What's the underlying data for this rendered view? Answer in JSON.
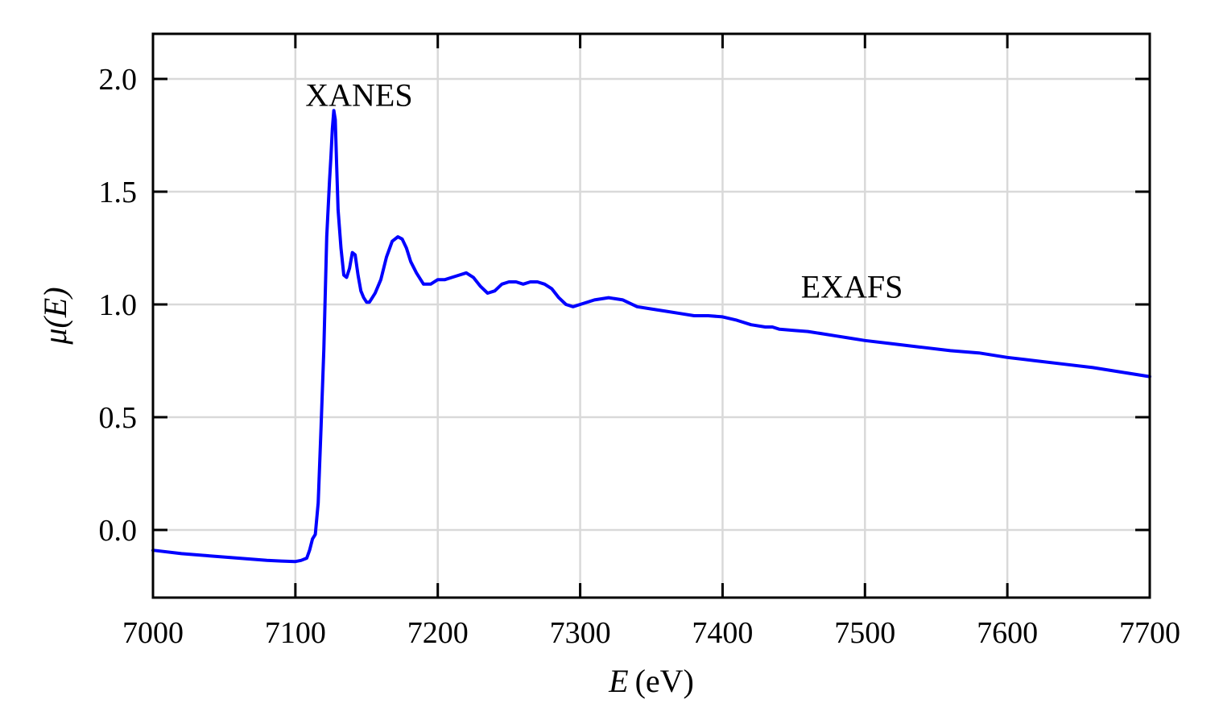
{
  "chart_data": {
    "type": "line",
    "title": "",
    "xlabel": "E",
    "xlabel_unit": "(eV)",
    "ylabel": "μ(E)",
    "xlim": [
      7000,
      7700
    ],
    "ylim": [
      -0.3,
      2.2
    ],
    "xticks": [
      7000,
      7100,
      7200,
      7300,
      7400,
      7500,
      7600,
      7700
    ],
    "xtick_labels": [
      "7000",
      "7100",
      "7200",
      "7300",
      "7400",
      "7500",
      "7600",
      "7700"
    ],
    "yticks": [
      0.0,
      0.5,
      1.0,
      1.5,
      2.0
    ],
    "ytick_labels": [
      "0.0",
      "0.5",
      "1.0",
      "1.5",
      "2.0"
    ],
    "grid": true,
    "series": [
      {
        "color": "#0000ff",
        "x": [
          7000,
          7020,
          7040,
          7060,
          7080,
          7090,
          7100,
          7104,
          7108,
          7110,
          7112,
          7114,
          7116,
          7118,
          7120,
          7122,
          7124,
          7125,
          7126,
          7127,
          7128,
          7129,
          7130,
          7132,
          7134,
          7136,
          7138,
          7140,
          7142,
          7144,
          7146,
          7148,
          7150,
          7152,
          7154,
          7156,
          7160,
          7164,
          7168,
          7172,
          7175,
          7178,
          7181,
          7185,
          7190,
          7195,
          7200,
          7205,
          7210,
          7215,
          7220,
          7225,
          7230,
          7235,
          7240,
          7245,
          7250,
          7255,
          7260,
          7265,
          7270,
          7275,
          7280,
          7285,
          7290,
          7295,
          7300,
          7310,
          7320,
          7330,
          7340,
          7350,
          7360,
          7370,
          7380,
          7390,
          7400,
          7410,
          7420,
          7430,
          7435,
          7440,
          7450,
          7460,
          7470,
          7480,
          7490,
          7500,
          7520,
          7540,
          7560,
          7580,
          7600,
          7620,
          7640,
          7660,
          7680,
          7700
        ],
        "y": [
          -0.09,
          -0.105,
          -0.115,
          -0.125,
          -0.135,
          -0.138,
          -0.14,
          -0.135,
          -0.125,
          -0.09,
          -0.04,
          -0.02,
          0.12,
          0.45,
          0.8,
          1.3,
          1.55,
          1.66,
          1.78,
          1.86,
          1.82,
          1.62,
          1.42,
          1.25,
          1.13,
          1.12,
          1.16,
          1.23,
          1.22,
          1.13,
          1.06,
          1.03,
          1.01,
          1.01,
          1.03,
          1.05,
          1.11,
          1.21,
          1.28,
          1.3,
          1.29,
          1.25,
          1.19,
          1.14,
          1.09,
          1.09,
          1.11,
          1.11,
          1.12,
          1.13,
          1.14,
          1.12,
          1.08,
          1.05,
          1.06,
          1.09,
          1.1,
          1.1,
          1.09,
          1.1,
          1.1,
          1.09,
          1.07,
          1.03,
          1.0,
          0.99,
          1.0,
          1.02,
          1.03,
          1.02,
          0.99,
          0.98,
          0.97,
          0.96,
          0.95,
          0.95,
          0.945,
          0.93,
          0.91,
          0.9,
          0.9,
          0.89,
          0.885,
          0.88,
          0.87,
          0.86,
          0.85,
          0.84,
          0.825,
          0.81,
          0.795,
          0.785,
          0.765,
          0.75,
          0.735,
          0.72,
          0.7,
          0.68
        ]
      }
    ],
    "annotations": [
      {
        "text": "XANES",
        "x": 7107,
        "y": 1.88
      },
      {
        "text": "EXAFS",
        "x": 7455,
        "y": 1.03
      }
    ]
  }
}
